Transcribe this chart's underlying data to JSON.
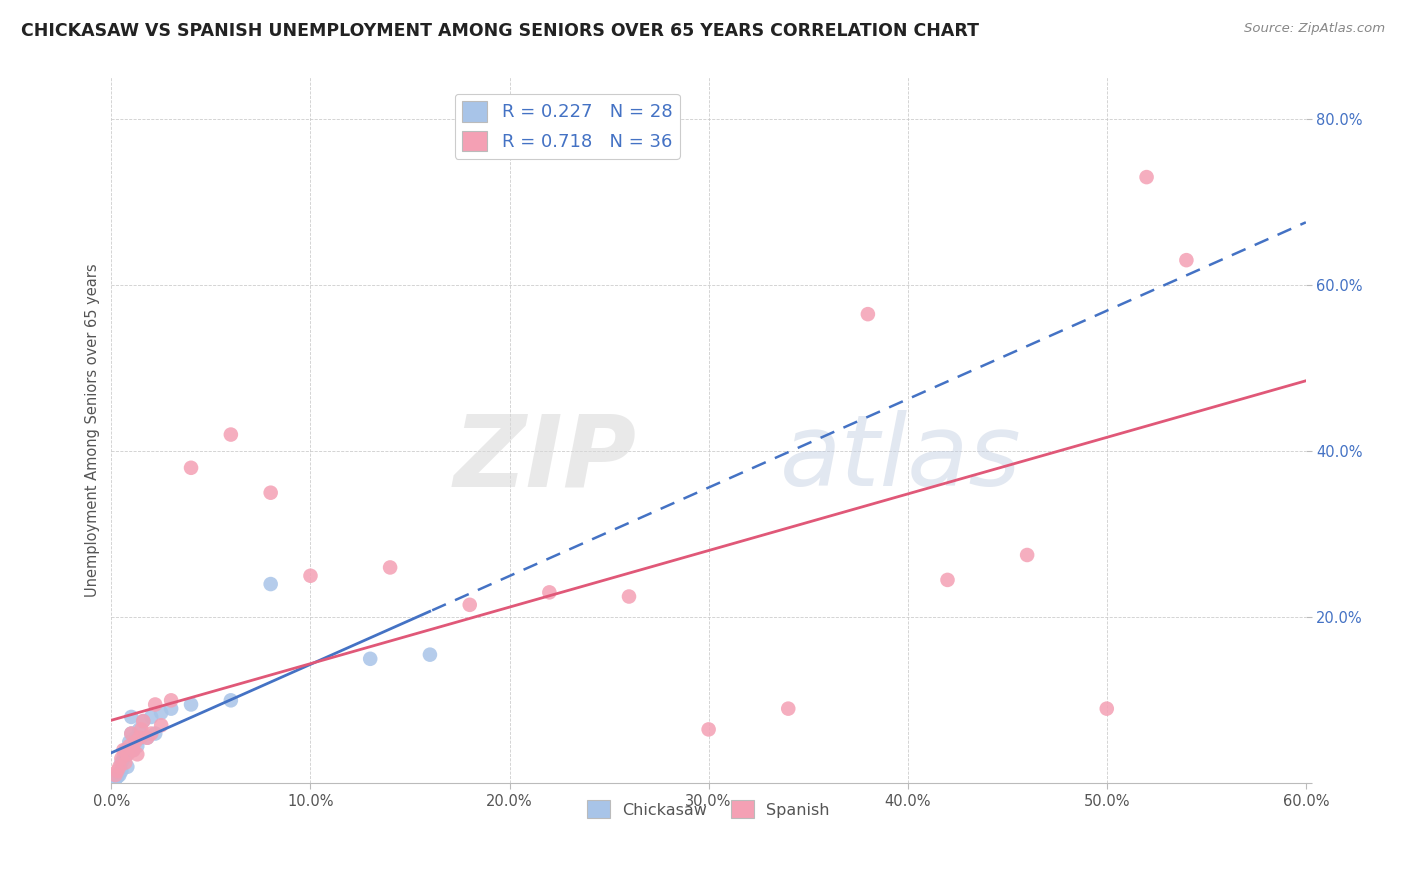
{
  "title": "CHICKASAW VS SPANISH UNEMPLOYMENT AMONG SENIORS OVER 65 YEARS CORRELATION CHART",
  "source": "Source: ZipAtlas.com",
  "ylabel": "Unemployment Among Seniors over 65 years",
  "xlabel": "",
  "xlim": [
    0,
    0.6
  ],
  "ylim": [
    0,
    0.85
  ],
  "xticks": [
    0.0,
    0.1,
    0.2,
    0.3,
    0.4,
    0.5,
    0.6
  ],
  "yticks": [
    0.0,
    0.2,
    0.4,
    0.6,
    0.8
  ],
  "chickasaw_R": "0.227",
  "chickasaw_N": "28",
  "spanish_R": "0.718",
  "spanish_N": "36",
  "chickasaw_color": "#a8c4e8",
  "spanish_color": "#f4a0b4",
  "chickasaw_line_color": "#4472c4",
  "spanish_line_color": "#e05878",
  "watermark_zip": "ZIP",
  "watermark_atlas": "atlas",
  "chickasaw_x": [
    0.002,
    0.003,
    0.004,
    0.005,
    0.005,
    0.006,
    0.007,
    0.008,
    0.008,
    0.009,
    0.01,
    0.01,
    0.011,
    0.012,
    0.013,
    0.014,
    0.015,
    0.016,
    0.018,
    0.02,
    0.022,
    0.025,
    0.03,
    0.04,
    0.06,
    0.08,
    0.13,
    0.16
  ],
  "chickasaw_y": [
    0.005,
    0.008,
    0.01,
    0.015,
    0.025,
    0.03,
    0.04,
    0.02,
    0.035,
    0.05,
    0.06,
    0.08,
    0.04,
    0.055,
    0.045,
    0.065,
    0.055,
    0.075,
    0.055,
    0.08,
    0.06,
    0.085,
    0.09,
    0.095,
    0.1,
    0.24,
    0.15,
    0.155
  ],
  "spanish_x": [
    0.002,
    0.003,
    0.004,
    0.005,
    0.006,
    0.007,
    0.008,
    0.009,
    0.01,
    0.011,
    0.012,
    0.013,
    0.014,
    0.015,
    0.016,
    0.018,
    0.02,
    0.022,
    0.025,
    0.03,
    0.04,
    0.06,
    0.08,
    0.1,
    0.14,
    0.18,
    0.22,
    0.26,
    0.3,
    0.34,
    0.38,
    0.42,
    0.46,
    0.5,
    0.52,
    0.54
  ],
  "spanish_y": [
    0.01,
    0.015,
    0.02,
    0.03,
    0.04,
    0.025,
    0.035,
    0.045,
    0.06,
    0.04,
    0.05,
    0.035,
    0.055,
    0.065,
    0.075,
    0.055,
    0.06,
    0.095,
    0.07,
    0.1,
    0.38,
    0.42,
    0.35,
    0.25,
    0.26,
    0.215,
    0.23,
    0.225,
    0.065,
    0.09,
    0.565,
    0.245,
    0.275,
    0.09,
    0.73,
    0.63
  ]
}
